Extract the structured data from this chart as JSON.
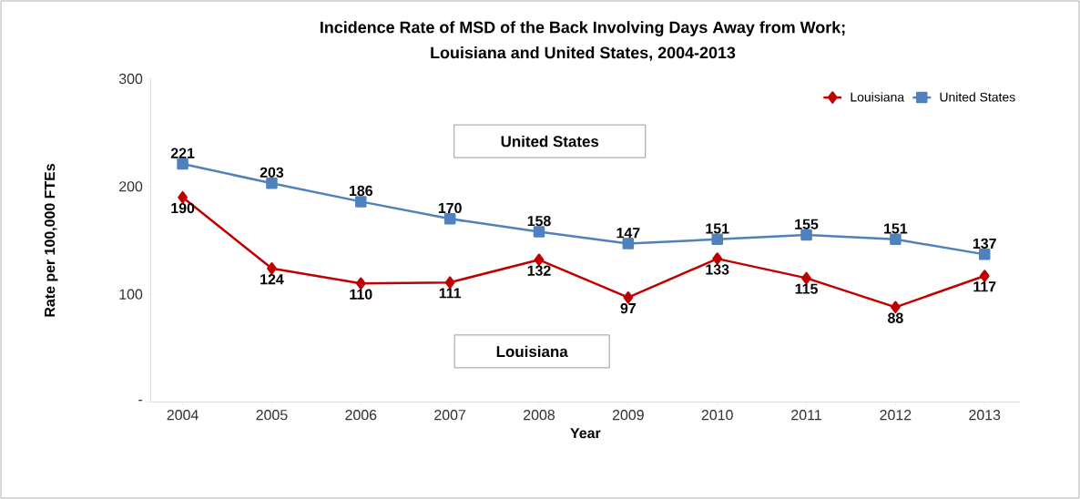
{
  "chart_data": {
    "type": "line",
    "title": "Incidence Rate of MSD of the Back Involving Days Away from Work;\nLouisiana and United States, 2004-2013",
    "xlabel": "Year",
    "ylabel": "Rate per 100,000 FTEs",
    "categories": [
      "2004",
      "2005",
      "2006",
      "2007",
      "2008",
      "2009",
      "2010",
      "2011",
      "2012",
      "2013"
    ],
    "series": [
      {
        "name": "Louisiana",
        "color": "#c00000",
        "marker": "diamond",
        "values": [
          190,
          124,
          110,
          111,
          132,
          97,
          133,
          115,
          88,
          117
        ]
      },
      {
        "name": "United States",
        "color": "#4f81bd",
        "marker": "square",
        "values": [
          221,
          203,
          186,
          170,
          158,
          147,
          151,
          155,
          151,
          137
        ]
      }
    ],
    "ylim": [
      0,
      300
    ],
    "yticks": [
      {
        "value": 0,
        "label": "-"
      },
      100,
      200,
      300
    ],
    "data_labels": true,
    "legend": "top right",
    "grid": false,
    "annotations": [
      "United States",
      "Louisiana"
    ]
  }
}
